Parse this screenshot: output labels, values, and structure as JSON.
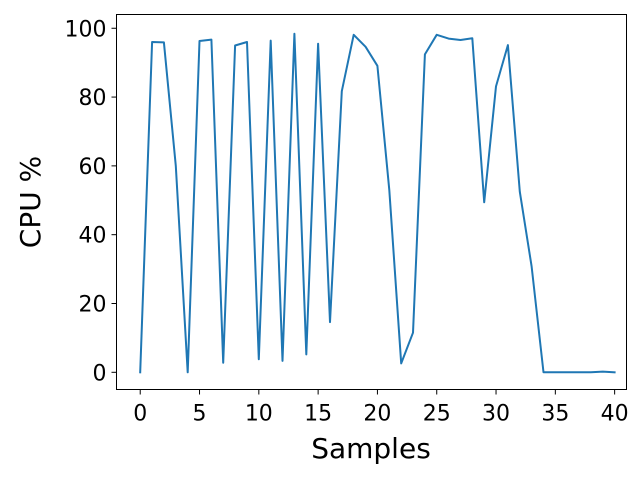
{
  "chart_data": {
    "type": "line",
    "title": "",
    "xlabel": "Samples",
    "ylabel": "CPU %",
    "xlim": [
      -2,
      41
    ],
    "ylim": [
      -5,
      104
    ],
    "xticks": [
      0,
      5,
      10,
      15,
      20,
      25,
      30,
      35,
      40
    ],
    "yticks": [
      0,
      20,
      40,
      60,
      80,
      100
    ],
    "grid": false,
    "legend": "none",
    "series": [
      {
        "color": "#1f77b4",
        "x": [
          0,
          1,
          2,
          3,
          4,
          5,
          6,
          7,
          8,
          9,
          10,
          11,
          12,
          13,
          14,
          15,
          16,
          17,
          18,
          19,
          20,
          21,
          22,
          23,
          24,
          25,
          26,
          27,
          28,
          29,
          30,
          31,
          32,
          33,
          34,
          35,
          36,
          37,
          38,
          39,
          40
        ],
        "values": [
          0,
          96,
          95.9,
          60,
          0,
          96.3,
          96.7,
          2.8,
          95,
          96,
          3.8,
          96.4,
          3.3,
          98.4,
          5.2,
          95.5,
          14.6,
          81.7,
          98.1,
          94.6,
          89.1,
          53,
          2.6,
          11.5,
          92.4,
          98.1,
          97,
          96.6,
          97.1,
          49.4,
          83.1,
          95.1,
          52.5,
          30.8,
          0,
          0,
          0,
          0,
          0,
          0.2,
          0
        ]
      }
    ]
  }
}
